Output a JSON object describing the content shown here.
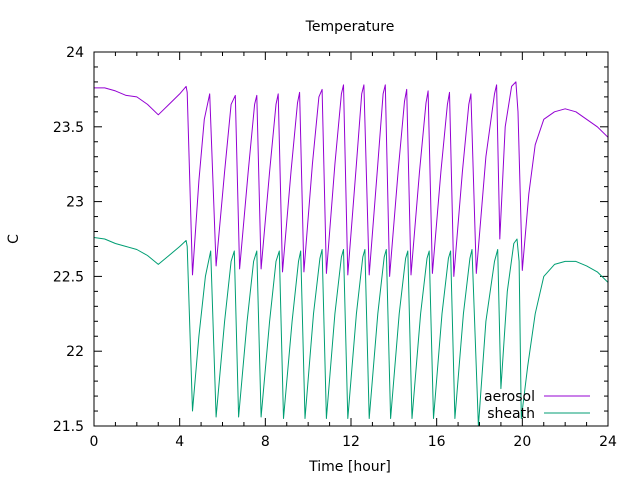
{
  "chart_data": {
    "type": "line",
    "title": "Temperature",
    "xlabel": "Time [hour]",
    "ylabel": "C",
    "xlim": [
      0,
      24
    ],
    "ylim": [
      21.5,
      24
    ],
    "x_ticks": [
      0,
      4,
      8,
      12,
      16,
      20,
      24
    ],
    "x_tick_labels": [
      "0",
      "4",
      "8",
      "12",
      "16",
      "20",
      "24"
    ],
    "y_ticks": [
      21.5,
      22,
      22.5,
      23,
      23.5,
      24
    ],
    "y_tick_labels": [
      "21.5",
      "22",
      "22.5",
      "23",
      "23.5",
      "24"
    ],
    "x_minor_step": 1,
    "y_minor_step": 0.1,
    "grid": false,
    "legend_position": "bottom-right",
    "series": [
      {
        "name": "aerosol",
        "color": "#9400d3",
        "points": [
          [
            0.0,
            23.76
          ],
          [
            0.5,
            23.76
          ],
          [
            1.0,
            23.74
          ],
          [
            1.5,
            23.71
          ],
          [
            2.0,
            23.7
          ],
          [
            2.5,
            23.65
          ],
          [
            3.0,
            23.58
          ],
          [
            3.5,
            23.65
          ],
          [
            4.0,
            23.72
          ],
          [
            4.3,
            23.77
          ],
          [
            4.35,
            23.73
          ],
          [
            4.6,
            22.51
          ],
          [
            4.9,
            23.14
          ],
          [
            5.15,
            23.55
          ],
          [
            5.4,
            23.72
          ],
          [
            5.7,
            22.57
          ],
          [
            6.1,
            23.2
          ],
          [
            6.4,
            23.65
          ],
          [
            6.6,
            23.71
          ],
          [
            6.8,
            22.55
          ],
          [
            7.2,
            23.2
          ],
          [
            7.5,
            23.65
          ],
          [
            7.6,
            23.71
          ],
          [
            7.8,
            22.55
          ],
          [
            8.2,
            23.2
          ],
          [
            8.5,
            23.65
          ],
          [
            8.6,
            23.72
          ],
          [
            8.8,
            22.53
          ],
          [
            9.2,
            23.2
          ],
          [
            9.5,
            23.66
          ],
          [
            9.6,
            23.73
          ],
          [
            9.8,
            22.53
          ],
          [
            10.2,
            23.25
          ],
          [
            10.5,
            23.7
          ],
          [
            10.65,
            23.75
          ],
          [
            10.85,
            22.52
          ],
          [
            11.25,
            23.25
          ],
          [
            11.55,
            23.72
          ],
          [
            11.65,
            23.78
          ],
          [
            11.85,
            22.51
          ],
          [
            12.25,
            23.25
          ],
          [
            12.5,
            23.72
          ],
          [
            12.6,
            23.78
          ],
          [
            12.85,
            22.51
          ],
          [
            13.25,
            23.25
          ],
          [
            13.5,
            23.72
          ],
          [
            13.6,
            23.78
          ],
          [
            13.8,
            22.5
          ],
          [
            14.2,
            23.2
          ],
          [
            14.5,
            23.67
          ],
          [
            14.6,
            23.75
          ],
          [
            14.8,
            22.51
          ],
          [
            15.2,
            23.2
          ],
          [
            15.5,
            23.66
          ],
          [
            15.6,
            23.74
          ],
          [
            15.8,
            22.52
          ],
          [
            16.2,
            23.2
          ],
          [
            16.5,
            23.65
          ],
          [
            16.6,
            23.73
          ],
          [
            16.8,
            22.5
          ],
          [
            17.2,
            23.2
          ],
          [
            17.5,
            23.65
          ],
          [
            17.6,
            23.72
          ],
          [
            17.85,
            22.52
          ],
          [
            18.3,
            23.3
          ],
          [
            18.7,
            23.72
          ],
          [
            18.8,
            23.78
          ],
          [
            18.95,
            22.75
          ],
          [
            19.2,
            23.5
          ],
          [
            19.5,
            23.77
          ],
          [
            19.7,
            23.8
          ],
          [
            19.8,
            23.6
          ],
          [
            20.0,
            22.54
          ],
          [
            20.3,
            23.05
          ],
          [
            20.6,
            23.38
          ],
          [
            21.0,
            23.55
          ],
          [
            21.5,
            23.6
          ],
          [
            22.0,
            23.62
          ],
          [
            22.5,
            23.6
          ],
          [
            23.0,
            23.55
          ],
          [
            23.5,
            23.5
          ],
          [
            24.0,
            23.43
          ]
        ]
      },
      {
        "name": "sheath",
        "color": "#009e73",
        "points": [
          [
            0.0,
            22.76
          ],
          [
            0.5,
            22.75
          ],
          [
            1.0,
            22.72
          ],
          [
            1.5,
            22.7
          ],
          [
            2.0,
            22.68
          ],
          [
            2.5,
            22.64
          ],
          [
            3.0,
            22.58
          ],
          [
            3.5,
            22.64
          ],
          [
            4.0,
            22.7
          ],
          [
            4.3,
            22.74
          ],
          [
            4.35,
            22.7
          ],
          [
            4.6,
            21.6
          ],
          [
            4.9,
            22.1
          ],
          [
            5.2,
            22.5
          ],
          [
            5.45,
            22.67
          ],
          [
            5.7,
            21.56
          ],
          [
            6.1,
            22.2
          ],
          [
            6.4,
            22.6
          ],
          [
            6.55,
            22.67
          ],
          [
            6.75,
            21.56
          ],
          [
            7.15,
            22.2
          ],
          [
            7.45,
            22.6
          ],
          [
            7.6,
            22.67
          ],
          [
            7.8,
            21.56
          ],
          [
            8.2,
            22.2
          ],
          [
            8.5,
            22.6
          ],
          [
            8.65,
            22.67
          ],
          [
            8.85,
            21.55
          ],
          [
            9.25,
            22.2
          ],
          [
            9.55,
            22.6
          ],
          [
            9.65,
            22.67
          ],
          [
            9.85,
            21.55
          ],
          [
            10.25,
            22.25
          ],
          [
            10.55,
            22.62
          ],
          [
            10.65,
            22.68
          ],
          [
            10.85,
            21.55
          ],
          [
            11.25,
            22.25
          ],
          [
            11.55,
            22.63
          ],
          [
            11.65,
            22.68
          ],
          [
            11.85,
            21.55
          ],
          [
            12.25,
            22.25
          ],
          [
            12.55,
            22.63
          ],
          [
            12.65,
            22.68
          ],
          [
            12.85,
            21.55
          ],
          [
            13.25,
            22.25
          ],
          [
            13.55,
            22.63
          ],
          [
            13.65,
            22.68
          ],
          [
            13.85,
            21.55
          ],
          [
            14.25,
            22.25
          ],
          [
            14.55,
            22.62
          ],
          [
            14.65,
            22.67
          ],
          [
            14.85,
            21.55
          ],
          [
            15.25,
            22.25
          ],
          [
            15.55,
            22.62
          ],
          [
            15.65,
            22.67
          ],
          [
            15.85,
            21.55
          ],
          [
            16.25,
            22.25
          ],
          [
            16.55,
            22.62
          ],
          [
            16.65,
            22.67
          ],
          [
            16.85,
            21.55
          ],
          [
            17.25,
            22.25
          ],
          [
            17.55,
            22.62
          ],
          [
            17.65,
            22.68
          ],
          [
            17.95,
            21.5
          ],
          [
            18.3,
            22.2
          ],
          [
            18.7,
            22.6
          ],
          [
            18.85,
            22.68
          ],
          [
            19.0,
            21.75
          ],
          [
            19.3,
            22.4
          ],
          [
            19.6,
            22.72
          ],
          [
            19.75,
            22.75
          ],
          [
            19.85,
            22.6
          ],
          [
            19.95,
            21.55
          ],
          [
            20.25,
            21.9
          ],
          [
            20.6,
            22.25
          ],
          [
            21.0,
            22.5
          ],
          [
            21.5,
            22.58
          ],
          [
            22.0,
            22.6
          ],
          [
            22.5,
            22.6
          ],
          [
            23.0,
            22.57
          ],
          [
            23.5,
            22.53
          ],
          [
            24.0,
            22.46
          ]
        ]
      }
    ]
  }
}
